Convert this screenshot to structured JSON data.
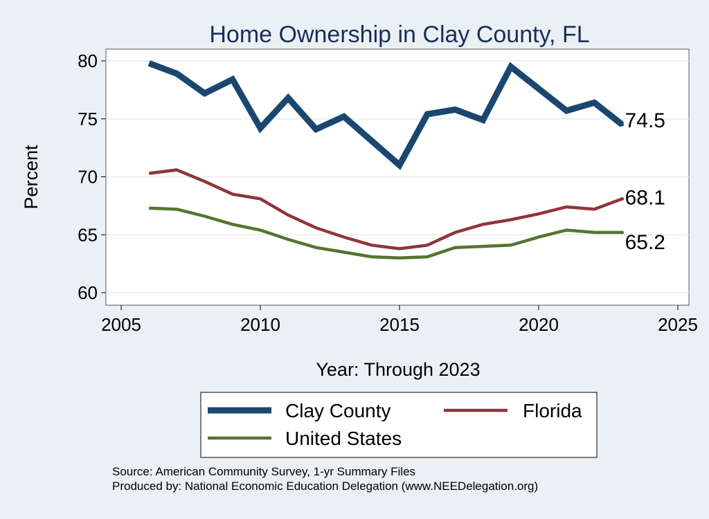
{
  "chart_data": {
    "type": "line",
    "title": "Home Ownership in Clay County, FL",
    "xlabel": "Year: Through 2023",
    "ylabel": "Percent",
    "xlim": [
      2005,
      2025
    ],
    "ylim": [
      60,
      80
    ],
    "xticks": [
      2005,
      2010,
      2015,
      2020,
      2025
    ],
    "yticks": [
      60,
      65,
      70,
      75,
      80
    ],
    "grid": true,
    "legend_placement": "bottom",
    "series": [
      {
        "name": "Clay County",
        "color": "#1a476f",
        "x": [
          2006,
          2007,
          2008,
          2009,
          2010,
          2011,
          2012,
          2013,
          2015,
          2016,
          2017,
          2018,
          2019,
          2021,
          2022,
          2023
        ],
        "values": [
          79.8,
          78.9,
          77.2,
          78.4,
          74.2,
          76.8,
          74.1,
          75.2,
          71.0,
          75.4,
          75.8,
          74.9,
          79.5,
          75.7,
          76.4,
          74.5
        ],
        "end_label": "74.5"
      },
      {
        "name": "Florida",
        "color": "#90353b",
        "x": [
          2006,
          2007,
          2008,
          2009,
          2010,
          2011,
          2012,
          2013,
          2014,
          2015,
          2016,
          2017,
          2018,
          2019,
          2020,
          2021,
          2022,
          2023
        ],
        "values": [
          70.3,
          70.6,
          69.6,
          68.5,
          68.1,
          66.7,
          65.6,
          64.8,
          64.1,
          63.8,
          64.1,
          65.2,
          65.9,
          66.3,
          66.8,
          67.4,
          67.2,
          68.1
        ],
        "end_label": "68.1"
      },
      {
        "name": "United States",
        "color": "#55752f",
        "x": [
          2006,
          2007,
          2008,
          2009,
          2010,
          2011,
          2012,
          2013,
          2014,
          2015,
          2016,
          2017,
          2018,
          2019,
          2020,
          2021,
          2022,
          2023
        ],
        "values": [
          67.3,
          67.2,
          66.6,
          65.9,
          65.4,
          64.6,
          63.9,
          63.5,
          63.1,
          63.0,
          63.1,
          63.9,
          64.0,
          64.1,
          64.8,
          65.4,
          65.2,
          65.2
        ],
        "end_label": "65.2"
      }
    ]
  },
  "notes": {
    "source": "Source: American Community Survey, 1-yr Summary Files",
    "producer": "Produced by: National Economic Education Delegation (www.NEEDelegation.org)"
  }
}
